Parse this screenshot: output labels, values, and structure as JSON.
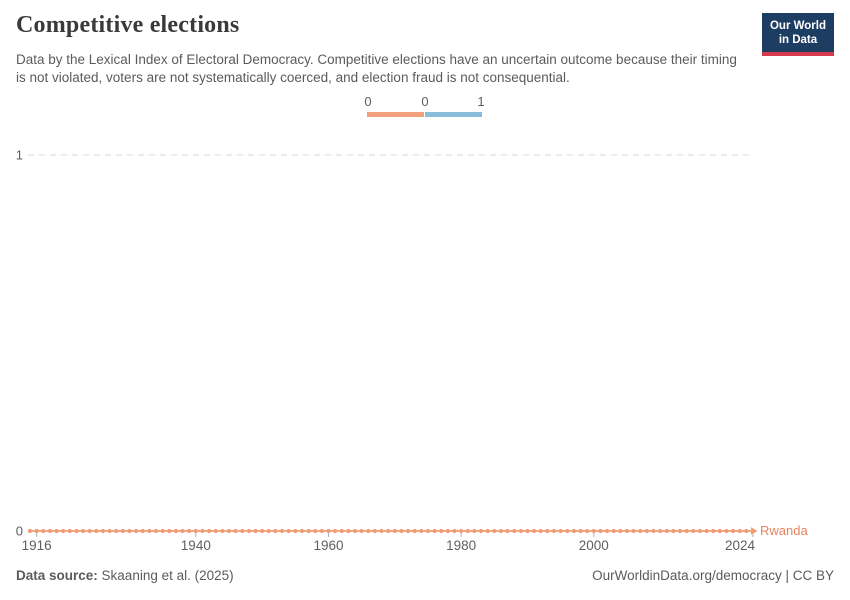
{
  "header": {
    "title": "Competitive elections",
    "subtitle": "Data by the Lexical Index of Electoral Democracy. Competitive elections have an uncertain outcome because their timing is not violated, voters are not systematically coerced, and election fraud is not consequential.",
    "logo": {
      "line1": "Our World",
      "line2": "in Data",
      "bg_color": "#1d3d63",
      "accent_color": "#d73a4d"
    }
  },
  "legend": {
    "tick_labels": [
      "0",
      "0",
      "1"
    ],
    "segments": [
      {
        "value": "0",
        "color": "#f2a17c"
      },
      {
        "value": "1",
        "color": "#88bedc"
      }
    ]
  },
  "chart_data": {
    "type": "line",
    "title": "Competitive elections",
    "xlabel": "",
    "ylabel": "",
    "xlim": [
      1915,
      2024
    ],
    "ylim": [
      0,
      1
    ],
    "x_ticks": [
      1916,
      1940,
      1960,
      1980,
      2000,
      2024
    ],
    "y_ticks": [
      1,
      0
    ],
    "grid": "horizontal dashed gridline at y=1 only",
    "legend_position": "top-center",
    "series": [
      {
        "name": "Rwanda",
        "color": "#f09c76",
        "x_start": 1915,
        "x_end": 2024,
        "x_step": 1,
        "constant_value": 0,
        "note": "value is 0 for every year from 1915 through 2024, drawn as dotted line with a point per year"
      }
    ]
  },
  "footer": {
    "source_label": "Data source:",
    "source_value": "Skaaning et al. (2025)",
    "credit": "OurWorldinData.org/democracy | CC BY"
  },
  "colors": {
    "title": "#3a3a3a",
    "body_text": "#5b5b5b",
    "axis_text": "#606060",
    "grid": "#d9d9d9",
    "tick": "#b0b0b0"
  }
}
